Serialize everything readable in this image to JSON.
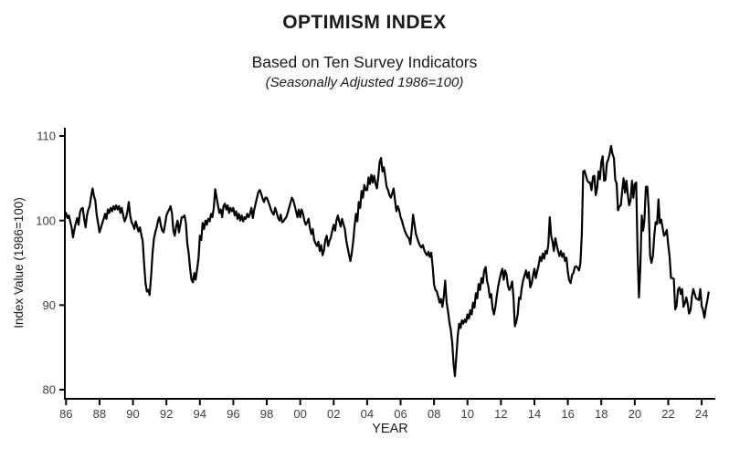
{
  "header": {
    "title": "OPTIMISM INDEX",
    "subtitle": "Based on Ten Survey Indicators",
    "note": "(Seasonally Adjusted 1986=100)"
  },
  "chart_data": {
    "type": "line",
    "title": "OPTIMISM INDEX",
    "subtitle": "Based on Ten Survey Indicators",
    "note": "(Seasonally Adjusted 1986=100)",
    "xlabel": "YEAR",
    "ylabel": "Index Value (1986=100)",
    "frequency": "monthly",
    "x_start_year": 1986,
    "xlim": [
      1986,
      2025
    ],
    "ylim": [
      80,
      110
    ],
    "grid": false,
    "legend": "none",
    "y_ticks": [
      80,
      90,
      100,
      110
    ],
    "x_tick_years": [
      1986,
      1988,
      1990,
      1992,
      1994,
      1996,
      1998,
      2000,
      2002,
      2004,
      2006,
      2008,
      2010,
      2012,
      2014,
      2016,
      2018,
      2020,
      2022,
      2024
    ],
    "x_tick_labels": [
      "86",
      "88",
      "90",
      "92",
      "94",
      "96",
      "98",
      "00",
      "02",
      "04",
      "06",
      "08",
      "10",
      "12",
      "14",
      "16",
      "18",
      "20",
      "22",
      "24"
    ],
    "line_color": "#000000",
    "line_width": 2.2,
    "axis_color": "#000000",
    "tick_label_color": "#404040",
    "text_color": "#1a1a1a",
    "series": [
      {
        "year": 1986,
        "values": [
          100.9,
          100.3,
          100.6,
          99.9,
          99.2,
          98.0,
          99.0,
          99.7,
          100.3,
          99.5,
          101.0,
          101.4
        ]
      },
      {
        "year": 1987,
        "values": [
          101.5,
          100.2,
          99.2,
          100.6,
          101.3,
          101.7,
          102.9,
          103.8,
          102.9,
          102.4,
          100.6,
          99.7
        ]
      },
      {
        "year": 1988,
        "values": [
          98.6,
          99.1,
          99.7,
          100.2,
          100.8,
          100.2,
          101.3,
          100.9,
          101.5,
          101.1,
          101.7,
          101.3
        ]
      },
      {
        "year": 1989,
        "values": [
          101.8,
          101.3,
          101.7,
          100.9,
          101.5,
          100.6,
          99.9,
          100.3,
          101.0,
          102.2,
          100.6,
          99.8
        ]
      },
      {
        "year": 1990,
        "values": [
          99.5,
          99.0,
          99.9,
          99.3,
          98.7,
          99.2,
          98.3,
          97.6,
          95.0,
          92.6,
          91.6,
          91.8
        ]
      },
      {
        "year": 1991,
        "values": [
          91.2,
          93.4,
          96.0,
          97.8,
          98.6,
          99.2,
          100.0,
          100.4,
          99.4,
          98.8,
          98.6,
          99.5
        ]
      },
      {
        "year": 1992,
        "values": [
          100.6,
          101.0,
          101.3,
          101.7,
          100.8,
          98.8,
          98.2,
          99.3,
          100.0,
          98.6,
          99.5,
          100.4
        ]
      },
      {
        "year": 1993,
        "values": [
          100.4,
          100.6,
          99.7,
          97.3,
          96.1,
          94.3,
          93.0,
          92.7,
          93.8,
          93.0,
          94.2,
          95.5
        ]
      },
      {
        "year": 1994,
        "values": [
          98.2,
          97.7,
          99.7,
          99.0,
          100.0,
          99.5,
          100.2,
          99.9,
          100.8,
          100.4,
          101.5,
          103.7
        ]
      },
      {
        "year": 1995,
        "values": [
          102.7,
          101.8,
          100.9,
          101.3,
          100.4,
          101.7,
          102.0,
          101.3,
          101.8,
          100.9,
          101.5,
          101.1
        ]
      },
      {
        "year": 1996,
        "values": [
          101.5,
          100.6,
          101.1,
          100.2,
          100.8,
          100.0,
          100.6,
          99.9,
          100.4,
          100.2,
          100.8,
          100.4
        ]
      },
      {
        "year": 1997,
        "values": [
          100.8,
          101.5,
          100.3,
          101.3,
          102.0,
          102.7,
          103.4,
          103.6,
          103.2,
          102.6,
          102.2,
          102.7
        ]
      },
      {
        "year": 1998,
        "values": [
          102.7,
          102.3,
          101.8,
          101.3,
          100.9,
          100.7,
          101.5,
          101.0,
          100.4,
          100.0,
          100.7,
          99.8
        ]
      },
      {
        "year": 1999,
        "values": [
          99.9,
          100.2,
          100.4,
          100.9,
          101.5,
          102.1,
          102.7,
          102.4,
          101.8,
          101.1,
          100.4,
          101.3
        ]
      },
      {
        "year": 2000,
        "values": [
          100.4,
          101.3,
          100.8,
          100.0,
          99.5,
          99.8,
          100.2,
          99.1,
          98.4,
          99.0,
          97.7,
          97.3
        ]
      },
      {
        "year": 2001,
        "values": [
          97.0,
          97.5,
          96.4,
          97.1,
          95.9,
          96.5,
          97.7,
          98.2,
          97.0,
          97.6,
          98.0,
          98.8
        ]
      },
      {
        "year": 2002,
        "values": [
          99.5,
          98.8,
          100.0,
          100.6,
          99.9,
          99.3,
          100.2,
          99.6,
          99.0,
          97.7,
          96.8,
          96.0
        ]
      },
      {
        "year": 2003,
        "values": [
          95.2,
          96.2,
          97.5,
          99.3,
          100.8,
          99.9,
          102.2,
          101.5,
          103.5,
          102.7,
          104.2,
          103.6
        ]
      },
      {
        "year": 2004,
        "values": [
          103.6,
          105.1,
          104.3,
          105.4,
          104.5,
          105.3,
          104.4,
          103.8,
          105.2,
          106.9,
          107.4,
          105.8
        ]
      },
      {
        "year": 2005,
        "values": [
          106.3,
          105.2,
          104.0,
          103.6,
          103.0,
          102.7,
          103.2,
          103.8,
          102.4,
          101.1,
          101.7,
          101.2
        ]
      },
      {
        "year": 2006,
        "values": [
          100.4,
          100.0,
          99.3,
          98.8,
          98.4,
          98.1,
          97.9,
          97.2,
          98.9,
          100.7,
          99.5,
          98.4
        ]
      },
      {
        "year": 2007,
        "values": [
          97.9,
          97.4,
          97.0,
          96.8,
          97.1,
          96.5,
          96.1,
          95.9,
          96.3,
          95.7,
          96.2,
          94.6
        ]
      },
      {
        "year": 2008,
        "values": [
          92.5,
          91.8,
          91.6,
          91.0,
          90.3,
          90.7,
          89.8,
          91.0,
          92.9,
          90.3,
          89.3,
          88.0
        ]
      },
      {
        "year": 2009,
        "values": [
          87.1,
          85.6,
          83.1,
          81.6,
          83.9,
          86.4,
          87.8,
          87.3,
          88.2,
          87.8,
          88.3,
          88.0
        ]
      },
      {
        "year": 2010,
        "values": [
          88.9,
          88.4,
          89.4,
          88.9,
          90.3,
          89.7,
          91.4,
          90.8,
          92.5,
          91.8,
          93.2,
          92.6
        ]
      },
      {
        "year": 2011,
        "values": [
          94.1,
          94.5,
          92.9,
          92.2,
          90.9,
          91.3,
          89.6,
          88.9,
          89.8,
          91.1,
          92.2,
          93.0
        ]
      },
      {
        "year": 2012,
        "values": [
          93.8,
          94.3,
          93.0,
          94.1,
          93.6,
          92.3,
          91.8,
          92.1,
          92.8,
          90.9,
          87.5,
          88.0
        ]
      },
      {
        "year": 2013,
        "values": [
          88.9,
          90.9,
          90.7,
          92.1,
          93.0,
          93.5,
          94.1,
          93.2,
          93.9,
          92.1,
          92.5,
          93.5
        ]
      },
      {
        "year": 2014,
        "values": [
          94.3,
          93.2,
          94.0,
          94.7,
          95.7,
          95.2,
          96.1,
          95.5,
          96.4,
          96.1,
          97.1,
          100.4
        ]
      },
      {
        "year": 2015,
        "values": [
          98.2,
          97.5,
          96.4,
          97.9,
          97.1,
          96.4,
          95.8,
          96.4,
          95.7,
          96.1,
          95.2,
          95.6
        ]
      },
      {
        "year": 2016,
        "values": [
          93.9,
          92.9,
          92.6,
          93.6,
          93.8,
          94.5,
          94.6,
          94.4,
          94.1,
          94.9,
          98.4,
          105.8
        ]
      },
      {
        "year": 2017,
        "values": [
          105.9,
          105.3,
          104.7,
          104.5,
          104.5,
          103.6,
          105.2,
          105.3,
          103.0,
          103.8,
          105.8,
          104.9
        ]
      },
      {
        "year": 2018,
        "values": [
          106.9,
          107.6,
          104.7,
          104.8,
          106.8,
          107.2,
          107.9,
          108.8,
          107.9,
          107.4,
          104.8,
          104.4
        ]
      },
      {
        "year": 2019,
        "values": [
          101.2,
          101.7,
          101.8,
          103.5,
          105.0,
          103.3,
          104.7,
          103.1,
          101.8,
          102.4,
          104.7,
          102.7
        ]
      },
      {
        "year": 2020,
        "values": [
          104.3,
          104.5,
          96.4,
          90.9,
          94.4,
          100.6,
          98.8,
          100.2,
          104.0,
          104.0,
          101.4,
          95.9
        ]
      },
      {
        "year": 2021,
        "values": [
          95.0,
          95.8,
          98.2,
          99.8,
          99.6,
          102.5,
          99.7,
          100.1,
          99.1,
          98.2,
          98.4,
          98.9
        ]
      },
      {
        "year": 2022,
        "values": [
          97.1,
          95.7,
          93.2,
          93.2,
          93.1,
          89.5,
          89.9,
          91.8,
          92.1,
          91.3,
          91.9,
          89.8
        ]
      },
      {
        "year": 2023,
        "values": [
          90.3,
          90.9,
          90.1,
          89.0,
          89.4,
          91.0,
          91.9,
          91.3,
          90.8,
          90.7,
          90.6,
          91.9
        ]
      },
      {
        "year": 2024,
        "values": [
          89.9,
          89.4,
          88.5,
          89.7,
          90.5,
          91.5
        ]
      }
    ]
  }
}
